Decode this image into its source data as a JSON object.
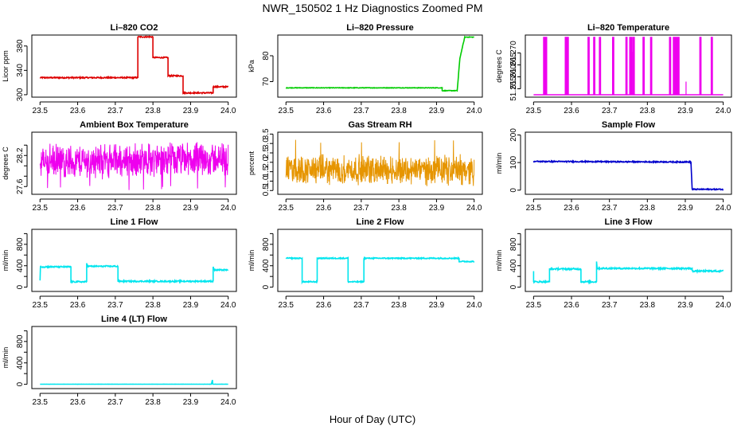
{
  "figure": {
    "title": "NWR_150502  1 Hz Diagnostics Zoomed PM",
    "xlabel": "Hour of Day (UTC)"
  },
  "chart_data": [
    {
      "id": "co2",
      "type": "line",
      "title": "Li–820 CO2",
      "ylabel": "Licor ppm",
      "color": "#dd0000",
      "xlim": [
        23.5,
        24.0
      ],
      "ylim": [
        296,
        398
      ],
      "xticks": [
        "23.5",
        "23.6",
        "23.7",
        "23.8",
        "23.9",
        "24.0"
      ],
      "yticks": [
        300,
        340,
        380
      ],
      "x": [
        23.5,
        23.76,
        23.76,
        23.8,
        23.8,
        23.84,
        23.84,
        23.88,
        23.88,
        23.96,
        23.96,
        24.0
      ],
      "y": [
        328,
        328,
        395,
        395,
        361,
        361,
        331,
        331,
        303,
        303,
        313,
        313
      ],
      "noise": 1
    },
    {
      "id": "pressure",
      "type": "line",
      "title": "Li–820 Pressure",
      "ylabel": "kPa",
      "color": "#00cc00",
      "xlim": [
        23.5,
        24.0
      ],
      "ylim": [
        64,
        88
      ],
      "xticks": [
        "23.5",
        "23.6",
        "23.7",
        "23.8",
        "23.9",
        "24.0"
      ],
      "yticks": [
        70,
        80
      ],
      "x": [
        23.5,
        23.915,
        23.915,
        23.955,
        23.962,
        23.975,
        24.0
      ],
      "y": [
        67.6,
        67.6,
        66.5,
        66.5,
        79,
        87.2,
        87.2
      ],
      "noise": 0.1
    },
    {
      "id": "licor-temp",
      "type": "spikes",
      "title": "Li–820 Temperature",
      "ylabel": "degrees C",
      "color": "#ee00ee",
      "xlim": [
        23.5,
        24.0
      ],
      "ylim": [
        51.2515,
        51.2775
      ],
      "xticks": [
        "23.5",
        "23.6",
        "23.7",
        "23.8",
        "23.9",
        "24.0"
      ],
      "yticks": [
        "51.255",
        "51.260",
        "51.265",
        "51.270"
      ],
      "baseline": 51.2525,
      "peak": 51.2765,
      "spike_x": [
        23.528,
        23.533,
        23.585,
        23.59,
        23.645,
        23.66,
        23.675,
        23.71,
        23.745,
        23.755,
        23.758,
        23.764,
        23.79,
        23.81,
        23.86,
        23.87,
        23.875,
        23.877,
        23.882,
        23.94,
        23.97
      ],
      "partial_spikes": [
        {
          "x": 23.762,
          "y": 51.2705
        },
        {
          "x": 23.902,
          "y": 51.258
        }
      ]
    },
    {
      "id": "box-temp",
      "type": "noise",
      "title": "Ambient Box Temperature",
      "ylabel": "degrees C",
      "color": "#ee00ee",
      "xlim": [
        23.5,
        24.0
      ],
      "ylim": [
        27.45,
        28.65
      ],
      "xticks": [
        "23.5",
        "23.6",
        "23.7",
        "23.8",
        "23.9",
        "24.0"
      ],
      "yticks": [
        "27.6",
        "27.8",
        "28.0",
        "28.2",
        "28.4"
      ],
      "tick_labels_shown": [
        "27.6",
        "28.2"
      ],
      "center": 28.08,
      "amplitude": 0.38,
      "center_end": 28.13,
      "min_dip": 27.52
    },
    {
      "id": "rh",
      "type": "noise",
      "title": "Gas Stream RH",
      "ylabel": "percent",
      "color": "#e69500",
      "xlim": [
        23.5,
        24.0
      ],
      "ylim": [
        0.3,
        3.6
      ],
      "xticks": [
        "23.5",
        "23.6",
        "23.7",
        "23.8",
        "23.9",
        "24.0"
      ],
      "yticks": [
        "0.5",
        "1.0",
        "1.5",
        "2.0",
        "2.5",
        "3.0",
        "3.5"
      ],
      "center": 1.6,
      "amplitude": 0.9,
      "center_end": 1.6,
      "max_peak": 3.3
    },
    {
      "id": "sample-flow",
      "type": "line",
      "title": "Sample Flow",
      "ylabel": "ml/min",
      "color": "#0000cc",
      "xlim": [
        23.5,
        24.0
      ],
      "ylim": [
        -15,
        210
      ],
      "xticks": [
        "23.5",
        "23.6",
        "23.7",
        "23.8",
        "23.9",
        "24.0"
      ],
      "yticks": [
        0,
        100,
        200
      ],
      "x": [
        23.5,
        23.915,
        23.918,
        24.0
      ],
      "y": [
        104,
        102,
        3,
        3
      ],
      "noise": 2
    },
    {
      "id": "line1",
      "type": "line",
      "title": "Line 1 Flow",
      "ylabel": "ml/min",
      "color": "#00e5ee",
      "xlim": [
        23.5,
        24.0
      ],
      "ylim": [
        -80,
        1080
      ],
      "xticks": [
        "23.5",
        "23.6",
        "23.7",
        "23.8",
        "23.9",
        "24.0"
      ],
      "yticks": [
        0,
        200,
        400,
        600,
        800,
        1000
      ],
      "tick_labels_shown": [
        "0",
        "400",
        "800"
      ],
      "x": [
        23.5,
        23.501,
        23.582,
        23.582,
        23.624,
        23.624,
        23.626,
        23.707,
        23.707,
        23.96,
        23.96,
        23.963,
        24.0
      ],
      "y": [
        130,
        380,
        380,
        100,
        100,
        450,
        390,
        390,
        110,
        110,
        390,
        320,
        320
      ],
      "noise": 12
    },
    {
      "id": "line2",
      "type": "line",
      "title": "Line 2 Flow",
      "ylabel": "ml/min",
      "color": "#00e5ee",
      "xlim": [
        23.5,
        24.0
      ],
      "ylim": [
        -80,
        1080
      ],
      "xticks": [
        "23.5",
        "23.6",
        "23.7",
        "23.8",
        "23.9",
        "24.0"
      ],
      "yticks": [
        0,
        200,
        400,
        600,
        800,
        1000
      ],
      "tick_labels_shown": [
        "0",
        "400",
        "800"
      ],
      "x": [
        23.5,
        23.543,
        23.543,
        23.583,
        23.583,
        23.665,
        23.665,
        23.707,
        23.707,
        23.96,
        23.96,
        24.0
      ],
      "y": [
        540,
        540,
        100,
        100,
        540,
        540,
        100,
        100,
        540,
        540,
        480,
        480
      ],
      "noise": 10
    },
    {
      "id": "line3",
      "type": "line",
      "title": "Line 3 Flow",
      "ylabel": "ml/min",
      "color": "#00e5ee",
      "xlim": [
        23.5,
        24.0
      ],
      "ylim": [
        -80,
        1080
      ],
      "xticks": [
        "23.5",
        "23.6",
        "23.7",
        "23.8",
        "23.9",
        "24.0"
      ],
      "yticks": [
        0,
        200,
        400,
        600,
        800,
        1000
      ],
      "tick_labels_shown": [
        "0",
        "400",
        "800"
      ],
      "x": [
        23.5,
        23.5,
        23.5,
        23.542,
        23.542,
        23.625,
        23.625,
        23.666,
        23.666,
        23.668,
        23.918,
        23.918,
        24.0
      ],
      "y": [
        300,
        100,
        100,
        100,
        340,
        340,
        100,
        100,
        480,
        350,
        350,
        300,
        300
      ],
      "noise": 14
    },
    {
      "id": "line4",
      "type": "line",
      "title": "Line 4 (LT) Flow",
      "ylabel": "ml/min",
      "color": "#00e5ee",
      "xlim": [
        23.5,
        24.0
      ],
      "ylim": [
        -80,
        1080
      ],
      "xticks": [
        "23.5",
        "23.6",
        "23.7",
        "23.8",
        "23.9",
        "24.0"
      ],
      "yticks": [
        0,
        200,
        400,
        600,
        800,
        1000
      ],
      "tick_labels_shown": [
        "0",
        "400",
        "800"
      ],
      "x": [
        23.5,
        23.955,
        23.958,
        23.959,
        23.962,
        24.0
      ],
      "y": [
        2,
        2,
        80,
        2,
        2,
        2
      ],
      "noise": 1
    }
  ]
}
